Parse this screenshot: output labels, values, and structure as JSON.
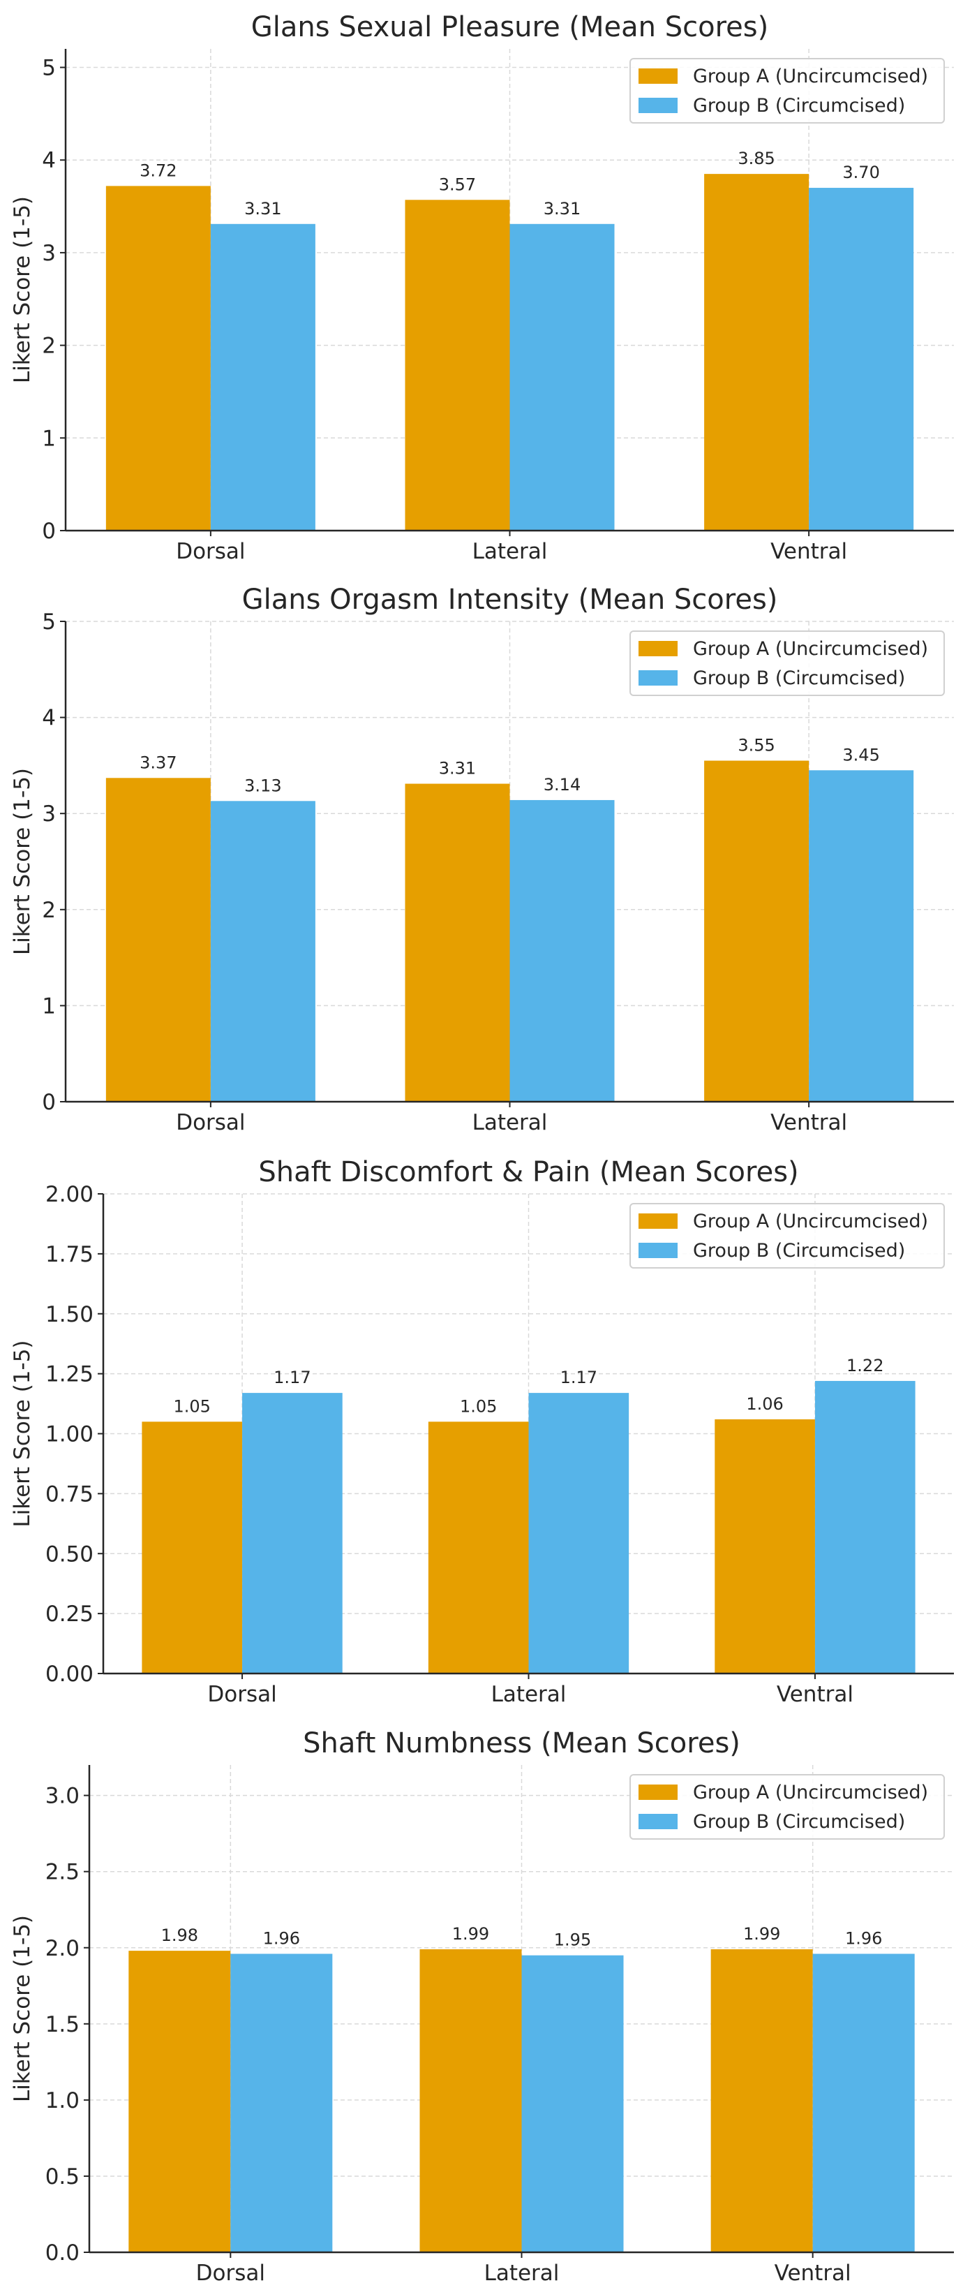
{
  "colors": {
    "group_a": "#E69F00",
    "group_b": "#56B4E9",
    "axis": "#262626",
    "grid": "#d9d9d9"
  },
  "chart_data": [
    {
      "type": "bar",
      "title": "Glans Sexual Pleasure (Mean Scores)",
      "xlabel": "",
      "ylabel": "Likert Score (1-5)",
      "categories": [
        "Dorsal",
        "Lateral",
        "Ventral"
      ],
      "series": [
        {
          "name": "Group A (Uncircumcised)",
          "values": [
            3.72,
            3.57,
            3.85
          ],
          "labels": [
            "3.72",
            "3.57",
            "3.85"
          ]
        },
        {
          "name": "Group B (Circumcised)",
          "values": [
            3.31,
            3.31,
            3.7
          ],
          "labels": [
            "3.31",
            "3.31",
            "3.70"
          ]
        }
      ],
      "ylim": [
        0,
        5.2
      ],
      "yticks": [
        "0",
        "1",
        "2",
        "3",
        "4",
        "5"
      ],
      "ytick_values": [
        0,
        1,
        2,
        3,
        4,
        5
      ],
      "grid": true,
      "legend": "top-right"
    },
    {
      "type": "bar",
      "title": "Glans Orgasm Intensity (Mean Scores)",
      "xlabel": "",
      "ylabel": "Likert Score (1-5)",
      "categories": [
        "Dorsal",
        "Lateral",
        "Ventral"
      ],
      "series": [
        {
          "name": "Group A (Uncircumcised)",
          "values": [
            3.37,
            3.31,
            3.55
          ],
          "labels": [
            "3.37",
            "3.31",
            "3.55"
          ]
        },
        {
          "name": "Group B (Circumcised)",
          "values": [
            3.13,
            3.14,
            3.45
          ],
          "labels": [
            "3.13",
            "3.14",
            "3.45"
          ]
        }
      ],
      "ylim": [
        0,
        5
      ],
      "yticks": [
        "0",
        "1",
        "2",
        "3",
        "4",
        "5"
      ],
      "ytick_values": [
        0,
        1,
        2,
        3,
        4,
        5
      ],
      "grid": true,
      "legend": "top-right"
    },
    {
      "type": "bar",
      "title": "Shaft Discomfort & Pain (Mean Scores)",
      "xlabel": "",
      "ylabel": "Likert Score (1-5)",
      "categories": [
        "Dorsal",
        "Lateral",
        "Ventral"
      ],
      "series": [
        {
          "name": "Group A (Uncircumcised)",
          "values": [
            1.05,
            1.05,
            1.06
          ],
          "labels": [
            "1.05",
            "1.05",
            "1.06"
          ]
        },
        {
          "name": "Group B (Circumcised)",
          "values": [
            1.17,
            1.17,
            1.22
          ],
          "labels": [
            "1.17",
            "1.17",
            "1.22"
          ]
        }
      ],
      "ylim": [
        0,
        2
      ],
      "yticks": [
        "0.00",
        "0.25",
        "0.50",
        "0.75",
        "1.00",
        "1.25",
        "1.50",
        "1.75",
        "2.00"
      ],
      "ytick_values": [
        0,
        0.25,
        0.5,
        0.75,
        1,
        1.25,
        1.5,
        1.75,
        2
      ],
      "grid": true,
      "legend": "top-right"
    },
    {
      "type": "bar",
      "title": "Shaft Numbness (Mean Scores)",
      "xlabel": "",
      "ylabel": "Likert Score (1-5)",
      "categories": [
        "Dorsal",
        "Lateral",
        "Ventral"
      ],
      "series": [
        {
          "name": "Group A (Uncircumcised)",
          "values": [
            1.98,
            1.99,
            1.99
          ],
          "labels": [
            "1.98",
            "1.99",
            "1.99"
          ]
        },
        {
          "name": "Group B (Circumcised)",
          "values": [
            1.96,
            1.95,
            1.96
          ],
          "labels": [
            "1.96",
            "1.95",
            "1.96"
          ]
        }
      ],
      "ylim": [
        0,
        3.2
      ],
      "yticks": [
        "0.0",
        "0.5",
        "1.0",
        "1.5",
        "2.0",
        "2.5",
        "3.0"
      ],
      "ytick_values": [
        0,
        0.5,
        1,
        1.5,
        2,
        2.5,
        3
      ],
      "grid": true,
      "legend": "top-right"
    }
  ]
}
